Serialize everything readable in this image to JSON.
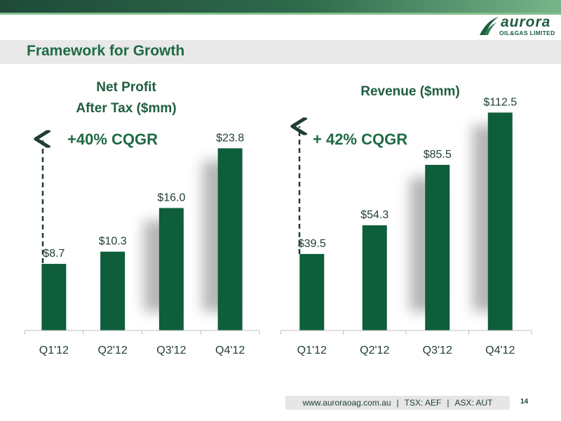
{
  "slide": {
    "title": "Framework for Growth",
    "page_number": "14"
  },
  "logo": {
    "word": "aurora",
    "sub": "OIL&GAS LIMITED"
  },
  "footer": {
    "website": "www.auroraoag.com.au",
    "tsx": "TSX: AEF",
    "asx": "ASX: AUT"
  },
  "colors": {
    "bar": "#0e5d3b",
    "title": "#1f6a44",
    "axis": "#bfbfbf"
  },
  "chart_data": [
    {
      "type": "bar",
      "title_line1": "Net Profit",
      "title_line2": "After Tax ($mm)",
      "annotation": "+40% CQGR",
      "categories": [
        "Q1'12",
        "Q2'12",
        "Q3'12",
        "Q4'12"
      ],
      "values": [
        8.7,
        10.3,
        16.0,
        23.8
      ],
      "labels": [
        "$8.7",
        "$10.3",
        "$16.0",
        "$23.8"
      ],
      "ylim": [
        0,
        27.5
      ]
    },
    {
      "type": "bar",
      "title_line1": "Revenue ($mm)",
      "annotation": "+ 42% CQGR",
      "categories": [
        "Q1'12",
        "Q2'12",
        "Q3'12",
        "Q4'12"
      ],
      "values": [
        39.5,
        54.3,
        85.5,
        112.5
      ],
      "labels": [
        "$39.5",
        "$54.3",
        "$85.5",
        "$112.5"
      ],
      "ylim": [
        0,
        117
      ]
    }
  ]
}
